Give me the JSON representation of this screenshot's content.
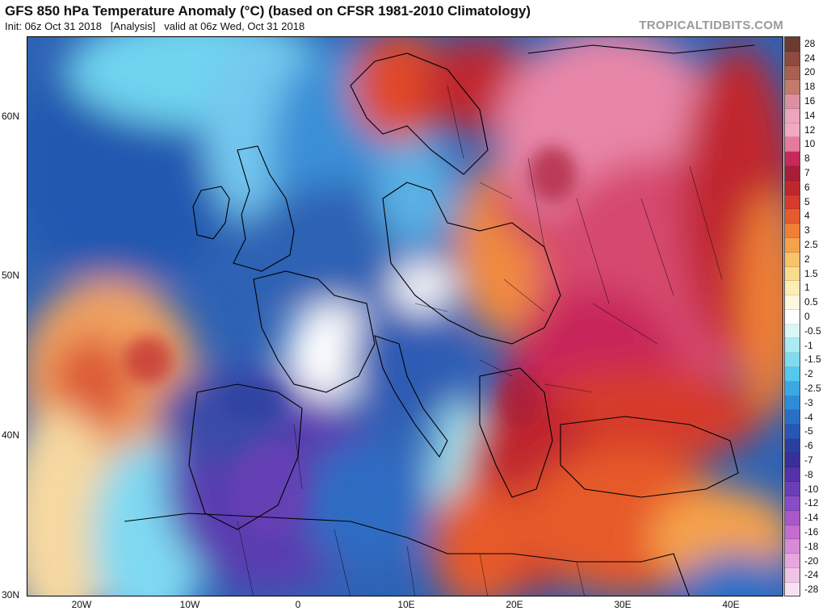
{
  "header": {
    "title": "GFS 850 hPa Temperature Anomaly (°C) (based on CFSR 1981-2010 Climatology)",
    "subtitle": "Init: 06z Oct 31 2018   [Analysis]   valid at 06z Wed, Oct 31 2018",
    "brand": "TROPICALTIDBITS.COM"
  },
  "map": {
    "lat_labels": [
      "60N",
      "50N",
      "40N",
      "30N"
    ],
    "lon_labels": [
      "20W",
      "10W",
      "0",
      "10E",
      "20E",
      "30E",
      "40E"
    ],
    "lat_values": [
      60,
      50,
      40,
      30
    ],
    "lon_values": [
      -20,
      -10,
      0,
      10,
      20,
      30,
      40
    ],
    "lon_range": [
      -25,
      45
    ],
    "lat_range": [
      30,
      65
    ],
    "colors": {
      "ocean_base": "#2e62b4",
      "land_outline": "#000000"
    }
  },
  "colorbar": {
    "labels": [
      "28",
      "24",
      "20",
      "18",
      "16",
      "14",
      "12",
      "10",
      "8",
      "7",
      "6",
      "5",
      "4",
      "3",
      "2.5",
      "2",
      "1.5",
      "1",
      "0.5",
      "0",
      "-0.5",
      "-1",
      "-1.5",
      "-2",
      "-2.5",
      "-3",
      "-4",
      "-5",
      "-6",
      "-7",
      "-8",
      "-10",
      "-12",
      "-14",
      "-16",
      "-18",
      "-20",
      "-24",
      "-28"
    ],
    "colors": [
      "#6b3a30",
      "#8e4a3e",
      "#a8604f",
      "#c47a6a",
      "#dc90a0",
      "#eba5bd",
      "#f1a9c2",
      "#e67a9c",
      "#c8285a",
      "#a71e38",
      "#c0272d",
      "#d63b2b",
      "#e65a2c",
      "#ef7f35",
      "#f5a24a",
      "#f8c36a",
      "#fbdc8e",
      "#fdeeb4",
      "#fff8de",
      "#ffffff",
      "#d9f6f8",
      "#a9ecf2",
      "#7fdcef",
      "#55c8ec",
      "#3aa9e3",
      "#2e8bd6",
      "#2a6fc6",
      "#2856b4",
      "#2a3fa0",
      "#3a2f98",
      "#5532a8",
      "#6a3fb6",
      "#8a4cc4",
      "#a958c8",
      "#c46ccf",
      "#d98ad7",
      "#e6a7de",
      "#efc4e6",
      "#f7e0f1"
    ]
  }
}
